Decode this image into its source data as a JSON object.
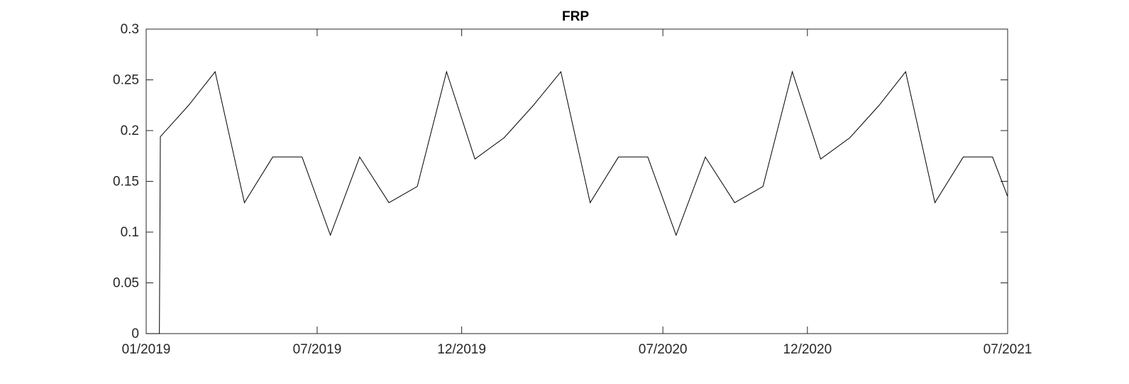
{
  "chart_data": {
    "type": "line",
    "title": "FRP",
    "xlabel": "",
    "ylabel": "",
    "x_tick_labels": [
      "01/2019",
      "07/2019",
      "12/2019",
      "07/2020",
      "12/2020",
      "07/2021"
    ],
    "x_ticks": [
      "2019-01-01",
      "2019-07-01",
      "2019-12-01",
      "2020-07-01",
      "2020-12-01",
      "2021-07-01"
    ],
    "xlim": [
      "2019-01-01",
      "2021-07-01"
    ],
    "y_ticks": [
      0,
      0.05,
      0.1,
      0.15,
      0.2,
      0.25,
      0.3
    ],
    "y_tick_labels": [
      "0",
      "0.05",
      "0.1",
      "0.15",
      "0.2",
      "0.25",
      "0.3"
    ],
    "ylim": [
      0,
      0.3
    ],
    "grid": false,
    "box": true,
    "line_color": "#000000",
    "series": [
      {
        "x": [
          "2019-01-01",
          "2019-01-15",
          "2019-01-16",
          "2019-02-15",
          "2019-03-15",
          "2019-04-15",
          "2019-05-15",
          "2019-06-15",
          "2019-07-15",
          "2019-08-15",
          "2019-09-15",
          "2019-10-15",
          "2019-11-15",
          "2019-12-15",
          "2020-01-15",
          "2020-02-15",
          "2020-03-15",
          "2020-04-15",
          "2020-05-15",
          "2020-06-15",
          "2020-07-15",
          "2020-08-15",
          "2020-09-15",
          "2020-10-15",
          "2020-11-15",
          "2020-12-15",
          "2021-01-15",
          "2021-02-15",
          "2021-03-15",
          "2021-04-15",
          "2021-05-15",
          "2021-06-15",
          "2021-07-01"
        ],
        "y": [
          0,
          0,
          0.194,
          0.225,
          0.258,
          0.129,
          0.174,
          0.174,
          0.097,
          0.174,
          0.129,
          0.145,
          0.258,
          0.172,
          0.193,
          0.225,
          0.258,
          0.129,
          0.174,
          0.174,
          0.097,
          0.174,
          0.129,
          0.145,
          0.258,
          0.172,
          0.193,
          0.225,
          0.258,
          0.129,
          0.174,
          0.174,
          0.135
        ]
      }
    ]
  }
}
